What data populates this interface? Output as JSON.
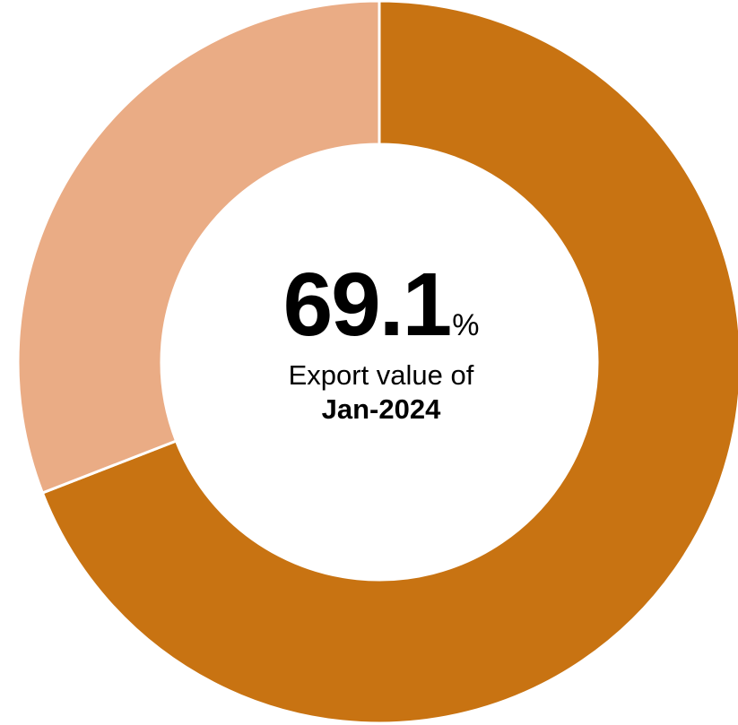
{
  "chart_data": {
    "type": "pie",
    "variant": "donut",
    "slices": [
      {
        "value": 69.1,
        "color": "#C87312"
      },
      {
        "value": 30.9,
        "color": "#EAAC85"
      }
    ],
    "start": "12 o'clock",
    "direction": "clockwise",
    "center": {
      "value": "69.1",
      "unit": "%",
      "caption": "Export value of",
      "period": "Jan-2024"
    }
  }
}
